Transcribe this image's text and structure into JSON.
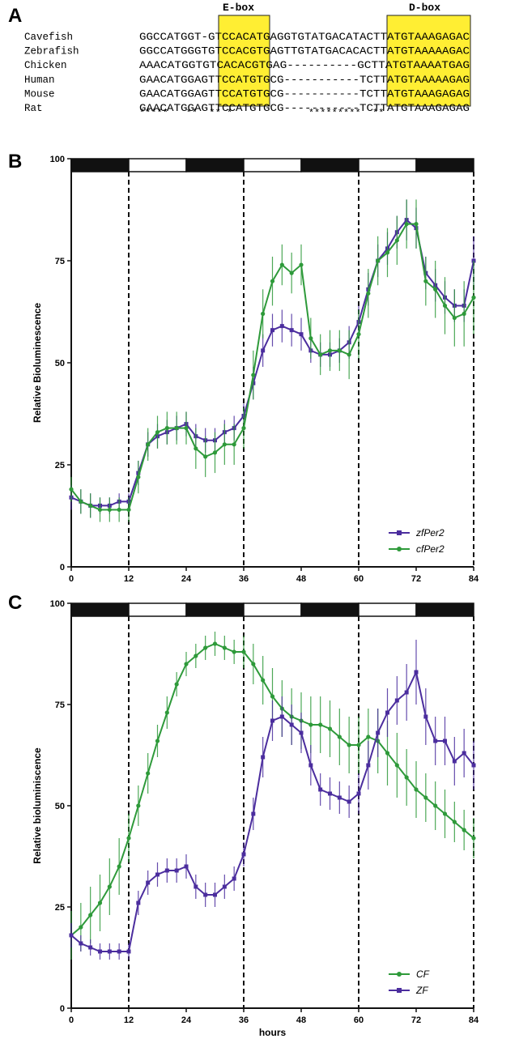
{
  "figure": {
    "panel_a": {
      "label": "A",
      "ebox_label": "E-box",
      "dbox_label": "D-box",
      "species": [
        "Cavefish",
        "Zebrafish",
        "Chicken",
        "Human",
        "Mouse",
        "Rat"
      ],
      "sequences": [
        "GGCCATGGT-GTCCACATGAGGTGTATGACATACTTATGTAAAGAGAC",
        "GGCCATGGGTGTCCACGTGAGTTGTATGACACACTTATGTAAAAAGAC",
        "AAACATGGTGTCACACGTGAG----------GCTTATGTAAAATGAG",
        "GAACATGGAGTTCCATGTGCG-----------TCTTATGTAAAAAGAG",
        "GAACATGGAGTTCCATGTGCG-----------TCTTATGTAAAGAGAG",
        "GAACATGGAGTTCCATGTGCG-----------TCTTATGTAAAGAGAG"
      ],
      "conservation": "*****   **  ** *             *********  **",
      "highlight_color": "#ffee33"
    }
  },
  "chart_data": [
    {
      "panel": "B",
      "type": "line",
      "ylabel": "Relative Bioluminescence",
      "xlabel": "",
      "xlim": [
        0,
        84
      ],
      "ylim": [
        0,
        100
      ],
      "xticks": [
        0,
        12,
        24,
        36,
        48,
        60,
        72,
        84
      ],
      "yticks": [
        0,
        25,
        50,
        75,
        100
      ],
      "light_dark_bar": [
        {
          "start": 0,
          "end": 12,
          "phase": "dark"
        },
        {
          "start": 12,
          "end": 24,
          "phase": "light"
        },
        {
          "start": 24,
          "end": 36,
          "phase": "dark"
        },
        {
          "start": 36,
          "end": 48,
          "phase": "light"
        },
        {
          "start": 48,
          "end": 60,
          "phase": "dark"
        },
        {
          "start": 60,
          "end": 72,
          "phase": "light"
        },
        {
          "start": 72,
          "end": 84,
          "phase": "dark"
        }
      ],
      "dashed_lines_x": [
        12,
        36,
        60,
        84
      ],
      "legend_position": "bottom-right",
      "series": [
        {
          "name": "zfPer2",
          "color": "#4b2d9e",
          "marker": "square",
          "x": [
            0,
            2,
            4,
            6,
            8,
            10,
            12,
            14,
            16,
            18,
            20,
            22,
            24,
            26,
            28,
            30,
            32,
            34,
            36,
            38,
            40,
            42,
            44,
            46,
            48,
            50,
            52,
            54,
            56,
            58,
            60,
            62,
            64,
            66,
            68,
            70,
            72,
            74,
            76,
            78,
            80,
            82,
            84
          ],
          "y": [
            17,
            16,
            15,
            15,
            15,
            16,
            16,
            23,
            30,
            32,
            33,
            34,
            35,
            32,
            31,
            31,
            33,
            34,
            37,
            45,
            53,
            58,
            59,
            58,
            57,
            53,
            52,
            52,
            53,
            55,
            60,
            68,
            75,
            78,
            82,
            85,
            83,
            72,
            69,
            66,
            64,
            64,
            75
          ],
          "err": [
            3,
            3,
            3,
            2,
            2,
            2,
            2,
            3,
            3,
            3,
            3,
            3,
            3,
            3,
            3,
            3,
            3,
            3,
            3,
            4,
            4,
            4,
            4,
            4,
            4,
            3,
            3,
            3,
            3,
            4,
            4,
            4,
            4,
            4,
            4,
            5,
            5,
            4,
            4,
            4,
            4,
            4,
            6
          ]
        },
        {
          "name": "cfPer2",
          "color": "#2e9a3a",
          "marker": "circle",
          "x": [
            0,
            2,
            4,
            6,
            8,
            10,
            12,
            14,
            16,
            18,
            20,
            22,
            24,
            26,
            28,
            30,
            32,
            34,
            36,
            38,
            40,
            42,
            44,
            46,
            48,
            50,
            52,
            54,
            56,
            58,
            60,
            62,
            64,
            66,
            68,
            70,
            72,
            74,
            76,
            78,
            80,
            82,
            84
          ],
          "y": [
            19,
            16,
            15,
            14,
            14,
            14,
            14,
            22,
            30,
            33,
            34,
            34,
            34,
            29,
            27,
            28,
            30,
            30,
            34,
            47,
            62,
            70,
            74,
            72,
            74,
            56,
            52,
            53,
            53,
            52,
            57,
            67,
            75,
            77,
            80,
            84,
            84,
            70,
            68,
            64,
            61,
            62,
            66
          ],
          "err": [
            3,
            3,
            3,
            3,
            3,
            3,
            3,
            4,
            4,
            4,
            4,
            4,
            4,
            5,
            5,
            5,
            5,
            5,
            5,
            6,
            6,
            6,
            5,
            5,
            5,
            5,
            5,
            5,
            5,
            6,
            6,
            6,
            6,
            6,
            6,
            6,
            6,
            6,
            7,
            7,
            7,
            8,
            9
          ]
        }
      ]
    },
    {
      "panel": "C",
      "type": "line",
      "ylabel": "Relative bioluminiscence",
      "xlabel": "hours",
      "xlim": [
        0,
        84
      ],
      "ylim": [
        0,
        100
      ],
      "xticks": [
        0,
        12,
        24,
        36,
        48,
        60,
        72,
        84
      ],
      "yticks": [
        0,
        25,
        50,
        75,
        100
      ],
      "light_dark_bar": [
        {
          "start": 0,
          "end": 12,
          "phase": "dark"
        },
        {
          "start": 12,
          "end": 24,
          "phase": "light"
        },
        {
          "start": 24,
          "end": 36,
          "phase": "dark"
        },
        {
          "start": 36,
          "end": 48,
          "phase": "light"
        },
        {
          "start": 48,
          "end": 60,
          "phase": "dark"
        },
        {
          "start": 60,
          "end": 72,
          "phase": "light"
        },
        {
          "start": 72,
          "end": 84,
          "phase": "dark"
        }
      ],
      "dashed_lines_x": [
        12,
        36,
        60,
        84
      ],
      "legend_position": "bottom-right",
      "series": [
        {
          "name": "CF",
          "color": "#2e9a3a",
          "marker": "circle",
          "x": [
            0,
            2,
            4,
            6,
            8,
            10,
            12,
            14,
            16,
            18,
            20,
            22,
            24,
            26,
            28,
            30,
            32,
            34,
            36,
            38,
            40,
            42,
            44,
            46,
            48,
            50,
            52,
            54,
            56,
            58,
            60,
            62,
            64,
            66,
            68,
            70,
            72,
            74,
            76,
            78,
            80,
            82,
            84
          ],
          "y": [
            18,
            20,
            23,
            26,
            30,
            35,
            42,
            50,
            58,
            66,
            73,
            80,
            85,
            87,
            89,
            90,
            89,
            88,
            88,
            85,
            81,
            77,
            74,
            72,
            71,
            70,
            70,
            69,
            67,
            65,
            65,
            67,
            66,
            63,
            60,
            57,
            54,
            52,
            50,
            48,
            46,
            44,
            42
          ],
          "err": [
            6,
            6,
            7,
            7,
            7,
            7,
            6,
            5,
            5,
            4,
            4,
            3,
            3,
            3,
            3,
            3,
            3,
            3,
            4,
            5,
            6,
            7,
            7,
            7,
            7,
            7,
            7,
            7,
            7,
            7,
            7,
            7,
            8,
            8,
            8,
            7,
            7,
            6,
            6,
            6,
            5,
            5,
            5
          ]
        },
        {
          "name": "ZF",
          "color": "#4b2d9e",
          "marker": "square",
          "x": [
            0,
            2,
            4,
            6,
            8,
            10,
            12,
            14,
            16,
            18,
            20,
            22,
            24,
            26,
            28,
            30,
            32,
            34,
            36,
            38,
            40,
            42,
            44,
            46,
            48,
            50,
            52,
            54,
            56,
            58,
            60,
            62,
            64,
            66,
            68,
            70,
            72,
            74,
            76,
            78,
            80,
            82,
            84
          ],
          "y": [
            18,
            16,
            15,
            14,
            14,
            14,
            14,
            26,
            31,
            33,
            34,
            34,
            35,
            30,
            28,
            28,
            30,
            32,
            38,
            48,
            62,
            71,
            72,
            70,
            68,
            60,
            54,
            53,
            52,
            51,
            53,
            60,
            68,
            73,
            76,
            78,
            83,
            72,
            66,
            66,
            61,
            63,
            60
          ],
          "err": [
            3,
            2,
            2,
            2,
            2,
            2,
            2,
            3,
            3,
            3,
            3,
            3,
            3,
            3,
            3,
            3,
            3,
            3,
            3,
            4,
            5,
            5,
            5,
            5,
            5,
            5,
            4,
            4,
            4,
            4,
            5,
            6,
            6,
            6,
            6,
            7,
            8,
            7,
            6,
            6,
            6,
            6,
            6
          ]
        }
      ]
    }
  ]
}
